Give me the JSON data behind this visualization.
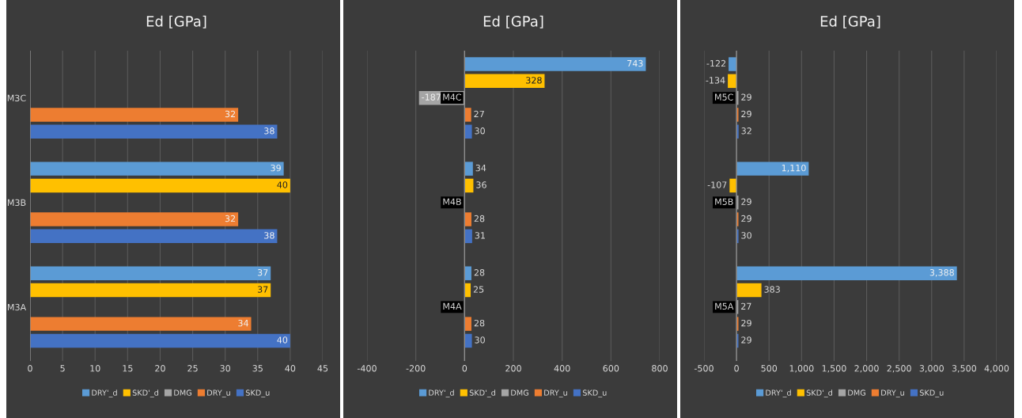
{
  "chart_data": [
    {
      "type": "bar",
      "orientation": "horizontal",
      "title": "Ed [GPa]",
      "categories": [
        "M3C",
        "M3B",
        "M3A"
      ],
      "xlim": [
        0,
        45
      ],
      "xticks": [
        0,
        5,
        10,
        15,
        20,
        25,
        30,
        35,
        40,
        45
      ],
      "grid": "x",
      "legend": "bottom",
      "series": [
        {
          "name": "DRY'_d",
          "color": "#5b9bd5",
          "values": [
            null,
            39,
            37
          ],
          "value_labels": [
            null,
            "39",
            "37"
          ]
        },
        {
          "name": "SKD'_d",
          "color": "#ffc000",
          "values": [
            null,
            40,
            37
          ],
          "value_labels": [
            null,
            "40",
            "37"
          ]
        },
        {
          "name": "DMG",
          "color": "#a5a5a5",
          "values": [
            null,
            null,
            null
          ],
          "value_labels": [
            null,
            null,
            null
          ]
        },
        {
          "name": "DRY_u",
          "color": "#ed7d31",
          "values": [
            32,
            32,
            34
          ],
          "value_labels": [
            "32",
            "32",
            "34"
          ]
        },
        {
          "name": "SKD_u",
          "color": "#4472c4",
          "values": [
            38,
            38,
            40
          ],
          "value_labels": [
            "38",
            "38",
            "40"
          ]
        }
      ]
    },
    {
      "type": "bar",
      "orientation": "horizontal",
      "title": "Ed [GPa]",
      "categories": [
        "M4C",
        "M4B",
        "M4A"
      ],
      "xlim": [
        -400,
        800
      ],
      "xticks": [
        -400,
        -200,
        0,
        200,
        400,
        600,
        800
      ],
      "grid": "x",
      "legend": "bottom",
      "series": [
        {
          "name": "DRY'_d",
          "color": "#5b9bd5",
          "values": [
            743,
            34,
            28
          ],
          "value_labels": [
            "743",
            "34",
            "28"
          ]
        },
        {
          "name": "SKD'_d",
          "color": "#ffc000",
          "values": [
            328,
            36,
            25
          ],
          "value_labels": [
            "328",
            "36",
            "25"
          ]
        },
        {
          "name": "DMG",
          "color": "#a5a5a5",
          "values": [
            -187,
            null,
            null
          ],
          "value_labels": [
            "-187",
            null,
            null
          ]
        },
        {
          "name": "DRY_u",
          "color": "#ed7d31",
          "values": [
            27,
            28,
            28
          ],
          "value_labels": [
            "27",
            "28",
            "28"
          ]
        },
        {
          "name": "SKD_u",
          "color": "#4472c4",
          "values": [
            30,
            31,
            30
          ],
          "value_labels": [
            "30",
            "31",
            "30"
          ]
        }
      ]
    },
    {
      "type": "bar",
      "orientation": "horizontal",
      "title": "Ed [GPa]",
      "categories": [
        "M5C",
        "M5B",
        "M5A"
      ],
      "xlim": [
        -500,
        4000
      ],
      "xticks": [
        -500,
        0,
        500,
        {
          "value": 1000,
          "label": "1,000"
        },
        {
          "value": 1500,
          "label": "1,500"
        },
        {
          "value": 2000,
          "label": "2,000"
        },
        {
          "value": 2500,
          "label": "2,500"
        },
        {
          "value": 3000,
          "label": "3,000"
        },
        {
          "value": 3500,
          "label": "3,500"
        },
        {
          "value": 4000,
          "label": "4,000"
        }
      ],
      "grid": "x",
      "legend": "bottom",
      "series": [
        {
          "name": "DRY'_d",
          "color": "#5b9bd5",
          "values": [
            -122,
            1110,
            3388
          ],
          "value_labels": [
            "-122",
            "1,110",
            "3,388"
          ]
        },
        {
          "name": "SKD'_d",
          "color": "#ffc000",
          "values": [
            -134,
            -107,
            383
          ],
          "value_labels": [
            "-134",
            "-107",
            "383"
          ]
        },
        {
          "name": "DMG",
          "color": "#a5a5a5",
          "values": [
            29,
            29,
            27
          ],
          "value_labels": [
            "29",
            "29",
            "27"
          ]
        },
        {
          "name": "DRY_u",
          "color": "#ed7d31",
          "values": [
            29,
            29,
            29
          ],
          "value_labels": [
            "29",
            "29",
            "29"
          ]
        },
        {
          "name": "SKD_u",
          "color": "#4472c4",
          "values": [
            32,
            30,
            29
          ],
          "value_labels": [
            "32",
            "30",
            "29"
          ]
        }
      ]
    }
  ]
}
